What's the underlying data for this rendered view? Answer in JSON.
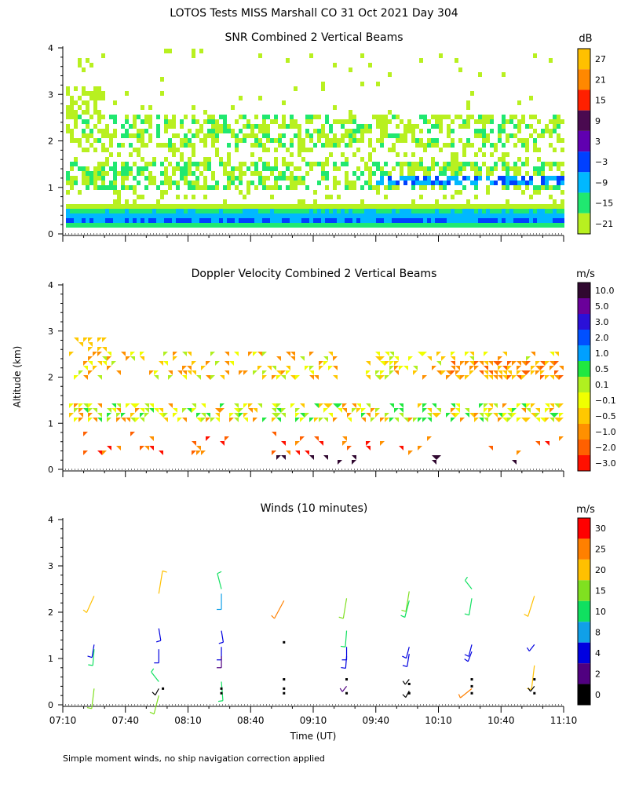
{
  "title": "LOTOS Tests MISS Marshall CO  31 Oct 2021 Day 304",
  "y_axis_label": "Altitude (km)",
  "x_axis_label": "Time (UT)",
  "footnote": "Simple moment winds, no ship navigation correction applied",
  "chart_data": [
    {
      "type": "heatmap",
      "title": "SNR Combined 2 Vertical Beams",
      "xlabel": "Time (UT)",
      "ylabel": "Altitude (km)",
      "xlim_minutes": [
        0,
        240
      ],
      "ylim": [
        0,
        4
      ],
      "y_ticks": [
        0,
        1,
        2,
        3,
        4
      ],
      "colorbar": {
        "unit": "dB",
        "labels": [
          "27",
          "21",
          "15",
          "9",
          "3",
          "−3",
          "−9",
          "−15",
          "−21"
        ],
        "colors": [
          "#ffc000",
          "#ff8800",
          "#ff2000",
          "#4a0a50",
          "#6000b0",
          "#0040ff",
          "#00b8ff",
          "#20e870",
          "#b8f020"
        ]
      },
      "layers": [
        {
          "alt_from": 0.25,
          "alt_to": 0.65,
          "level": "-15 to -9",
          "note": "continuous near-surface band"
        },
        {
          "alt_from": 0.28,
          "alt_to": 0.38,
          "level": "-3",
          "note": "strong return at lowest gates"
        },
        {
          "alt_from": 1.0,
          "alt_to": 1.6,
          "level": "-21 to -9"
        },
        {
          "alt_from": 1.15,
          "alt_to": 1.3,
          "level": "-9 to -3",
          "time_from": 150,
          "time_to": 240
        },
        {
          "alt_from": 1.9,
          "alt_to": 2.6,
          "level": "-21 to -15"
        },
        {
          "alt_from": 2.5,
          "alt_to": 3.2,
          "level": "-21",
          "time_from": 0,
          "time_to": 20
        }
      ]
    },
    {
      "type": "heatmap",
      "title": "Doppler Velocity Combined 2 Vertical Beams",
      "xlabel": "Time (UT)",
      "ylabel": "Altitude (km)",
      "xlim_minutes": [
        0,
        240
      ],
      "ylim": [
        0,
        4
      ],
      "y_ticks": [
        0,
        1,
        2,
        3,
        4
      ],
      "colorbar": {
        "unit": "m/s",
        "labels": [
          "10.0",
          "5.0",
          "3.0",
          "2.0",
          "1.0",
          "0.5",
          "0.1",
          "−0.1",
          "−0.5",
          "−1.0",
          "−2.0",
          "−3.0"
        ],
        "colors": [
          "#300830",
          "#6a009a",
          "#2a10d8",
          "#0050ff",
          "#00a0ff",
          "#20e840",
          "#b0f020",
          "#f0ff00",
          "#ffc800",
          "#ff9000",
          "#ff6000",
          "#ff1000"
        ]
      },
      "layers": [
        {
          "alt_from": 1.1,
          "alt_to": 1.5,
          "level": "-0.5 to 0.1"
        },
        {
          "alt_from": 2.0,
          "alt_to": 2.6,
          "level": "-1.0 to -0.1"
        },
        {
          "alt_from": 2.0,
          "alt_to": 2.3,
          "level": "-2.0 to -1.0",
          "time_from": 185,
          "time_to": 240
        },
        {
          "alt_from": 0.4,
          "alt_to": 0.8,
          "level": "-3.0 to -2.0",
          "note": "sparse"
        },
        {
          "alt_from": 0.2,
          "alt_to": 0.3,
          "level": "5.0 to 10.0",
          "note": "sparse"
        }
      ]
    },
    {
      "type": "scatter",
      "title": "Winds (10 minutes)",
      "xlabel": "Time (UT)",
      "ylabel": "Altitude (km)",
      "xlim_minutes": [
        0,
        240
      ],
      "ylim": [
        0,
        4
      ],
      "y_ticks": [
        0,
        1,
        2,
        3,
        4
      ],
      "colorbar": {
        "unit": "m/s",
        "labels": [
          "30",
          "25",
          "20",
          "15",
          "10",
          "8",
          "4",
          "2",
          "0"
        ],
        "colors": [
          "#ff0000",
          "#ff8000",
          "#ffc000",
          "#80e020",
          "#10e060",
          "#10a0e8",
          "#0000e0",
          "#500080",
          "#000000"
        ]
      },
      "profile_times_minutes": [
        15,
        46,
        76,
        106,
        136,
        166,
        196,
        226
      ],
      "barbs": [
        {
          "t": 15,
          "alt": 2.35,
          "speed": 20,
          "dir_deg": 225
        },
        {
          "t": 15,
          "alt": 1.3,
          "speed": 6,
          "dir_deg": 200
        },
        {
          "t": 15,
          "alt": 1.2,
          "speed": 10,
          "dir_deg": 190
        },
        {
          "t": 15,
          "alt": 0.35,
          "speed": 16,
          "dir_deg": 195
        },
        {
          "t": 46,
          "alt": 2.4,
          "speed": 21,
          "dir_deg": 20
        },
        {
          "t": 46,
          "alt": 1.65,
          "speed": 5,
          "dir_deg": 160
        },
        {
          "t": 46,
          "alt": 1.2,
          "speed": 6,
          "dir_deg": 180
        },
        {
          "t": 46,
          "alt": 0.5,
          "speed": 14,
          "dir_deg": 300
        },
        {
          "t": 46,
          "alt": 0.35,
          "speed": 1,
          "dir_deg": 230
        },
        {
          "t": 46,
          "alt": 0.2,
          "speed": 17,
          "dir_deg": 210
        },
        {
          "t": 76,
          "alt": 2.5,
          "speed": 12,
          "dir_deg": 330
        },
        {
          "t": 76,
          "alt": 2.4,
          "speed": 9,
          "dir_deg": 180
        },
        {
          "t": 76,
          "alt": 1.6,
          "speed": 4,
          "dir_deg": 160
        },
        {
          "t": 76,
          "alt": 1.25,
          "speed": 5,
          "dir_deg": 180
        },
        {
          "t": 76,
          "alt": 1.05,
          "speed": 3,
          "dir_deg": 180
        },
        {
          "t": 76,
          "alt": 0.5,
          "speed": 14,
          "dir_deg": 170
        },
        {
          "t": 106,
          "alt": 2.25,
          "speed": 26,
          "dir_deg": 230
        },
        {
          "t": 136,
          "alt": 2.3,
          "speed": 17,
          "dir_deg": 200
        },
        {
          "t": 136,
          "alt": 1.6,
          "speed": 10,
          "dir_deg": 190
        },
        {
          "t": 136,
          "alt": 1.25,
          "speed": 5,
          "dir_deg": 180
        },
        {
          "t": 136,
          "alt": 1.05,
          "speed": 4,
          "dir_deg": 190
        },
        {
          "t": 136,
          "alt": 0.4,
          "speed": 2,
          "dir_deg": 240
        },
        {
          "t": 166,
          "alt": 2.45,
          "speed": 17,
          "dir_deg": 200
        },
        {
          "t": 166,
          "alt": 2.25,
          "speed": 14,
          "dir_deg": 210
        },
        {
          "t": 166,
          "alt": 1.25,
          "speed": 5,
          "dir_deg": 210
        },
        {
          "t": 166,
          "alt": 1.1,
          "speed": 6,
          "dir_deg": 200
        },
        {
          "t": 166,
          "alt": 0.55,
          "speed": 1,
          "dir_deg": 240
        },
        {
          "t": 166,
          "alt": 0.3,
          "speed": 1,
          "dir_deg": 230
        },
        {
          "t": 196,
          "alt": 2.5,
          "speed": 11,
          "dir_deg": 300
        },
        {
          "t": 196,
          "alt": 2.3,
          "speed": 12,
          "dir_deg": 200
        },
        {
          "t": 196,
          "alt": 1.3,
          "speed": 6,
          "dir_deg": 210
        },
        {
          "t": 196,
          "alt": 1.15,
          "speed": 5,
          "dir_deg": 220
        },
        {
          "t": 196,
          "alt": 0.35,
          "speed": 25,
          "dir_deg": 250
        },
        {
          "t": 226,
          "alt": 2.35,
          "speed": 22,
          "dir_deg": 215
        },
        {
          "t": 226,
          "alt": 1.3,
          "speed": 5,
          "dir_deg": 240
        },
        {
          "t": 226,
          "alt": 0.85,
          "speed": 22,
          "dir_deg": 195
        },
        {
          "t": 226,
          "alt": 0.4,
          "speed": 1,
          "dir_deg": 240
        }
      ],
      "calm_points": [
        {
          "t": 48,
          "alt": 0.35
        },
        {
          "t": 76,
          "alt": 0.25
        },
        {
          "t": 76,
          "alt": 0.35
        },
        {
          "t": 106,
          "alt": 1.35
        },
        {
          "t": 106,
          "alt": 0.55
        },
        {
          "t": 106,
          "alt": 0.35
        },
        {
          "t": 106,
          "alt": 0.25
        },
        {
          "t": 136,
          "alt": 0.55
        },
        {
          "t": 136,
          "alt": 0.25
        },
        {
          "t": 166,
          "alt": 0.45
        },
        {
          "t": 166,
          "alt": 0.25
        },
        {
          "t": 196,
          "alt": 0.55
        },
        {
          "t": 196,
          "alt": 0.4
        },
        {
          "t": 196,
          "alt": 0.25
        },
        {
          "t": 226,
          "alt": 0.55
        },
        {
          "t": 226,
          "alt": 0.25
        }
      ]
    }
  ],
  "x_tick_labels": [
    "07:10",
    "07:40",
    "08:10",
    "08:40",
    "09:10",
    "09:40",
    "10:10",
    "10:40",
    "11:10"
  ],
  "x_tick_minutes": [
    0,
    30,
    60,
    90,
    120,
    150,
    180,
    210,
    240
  ]
}
